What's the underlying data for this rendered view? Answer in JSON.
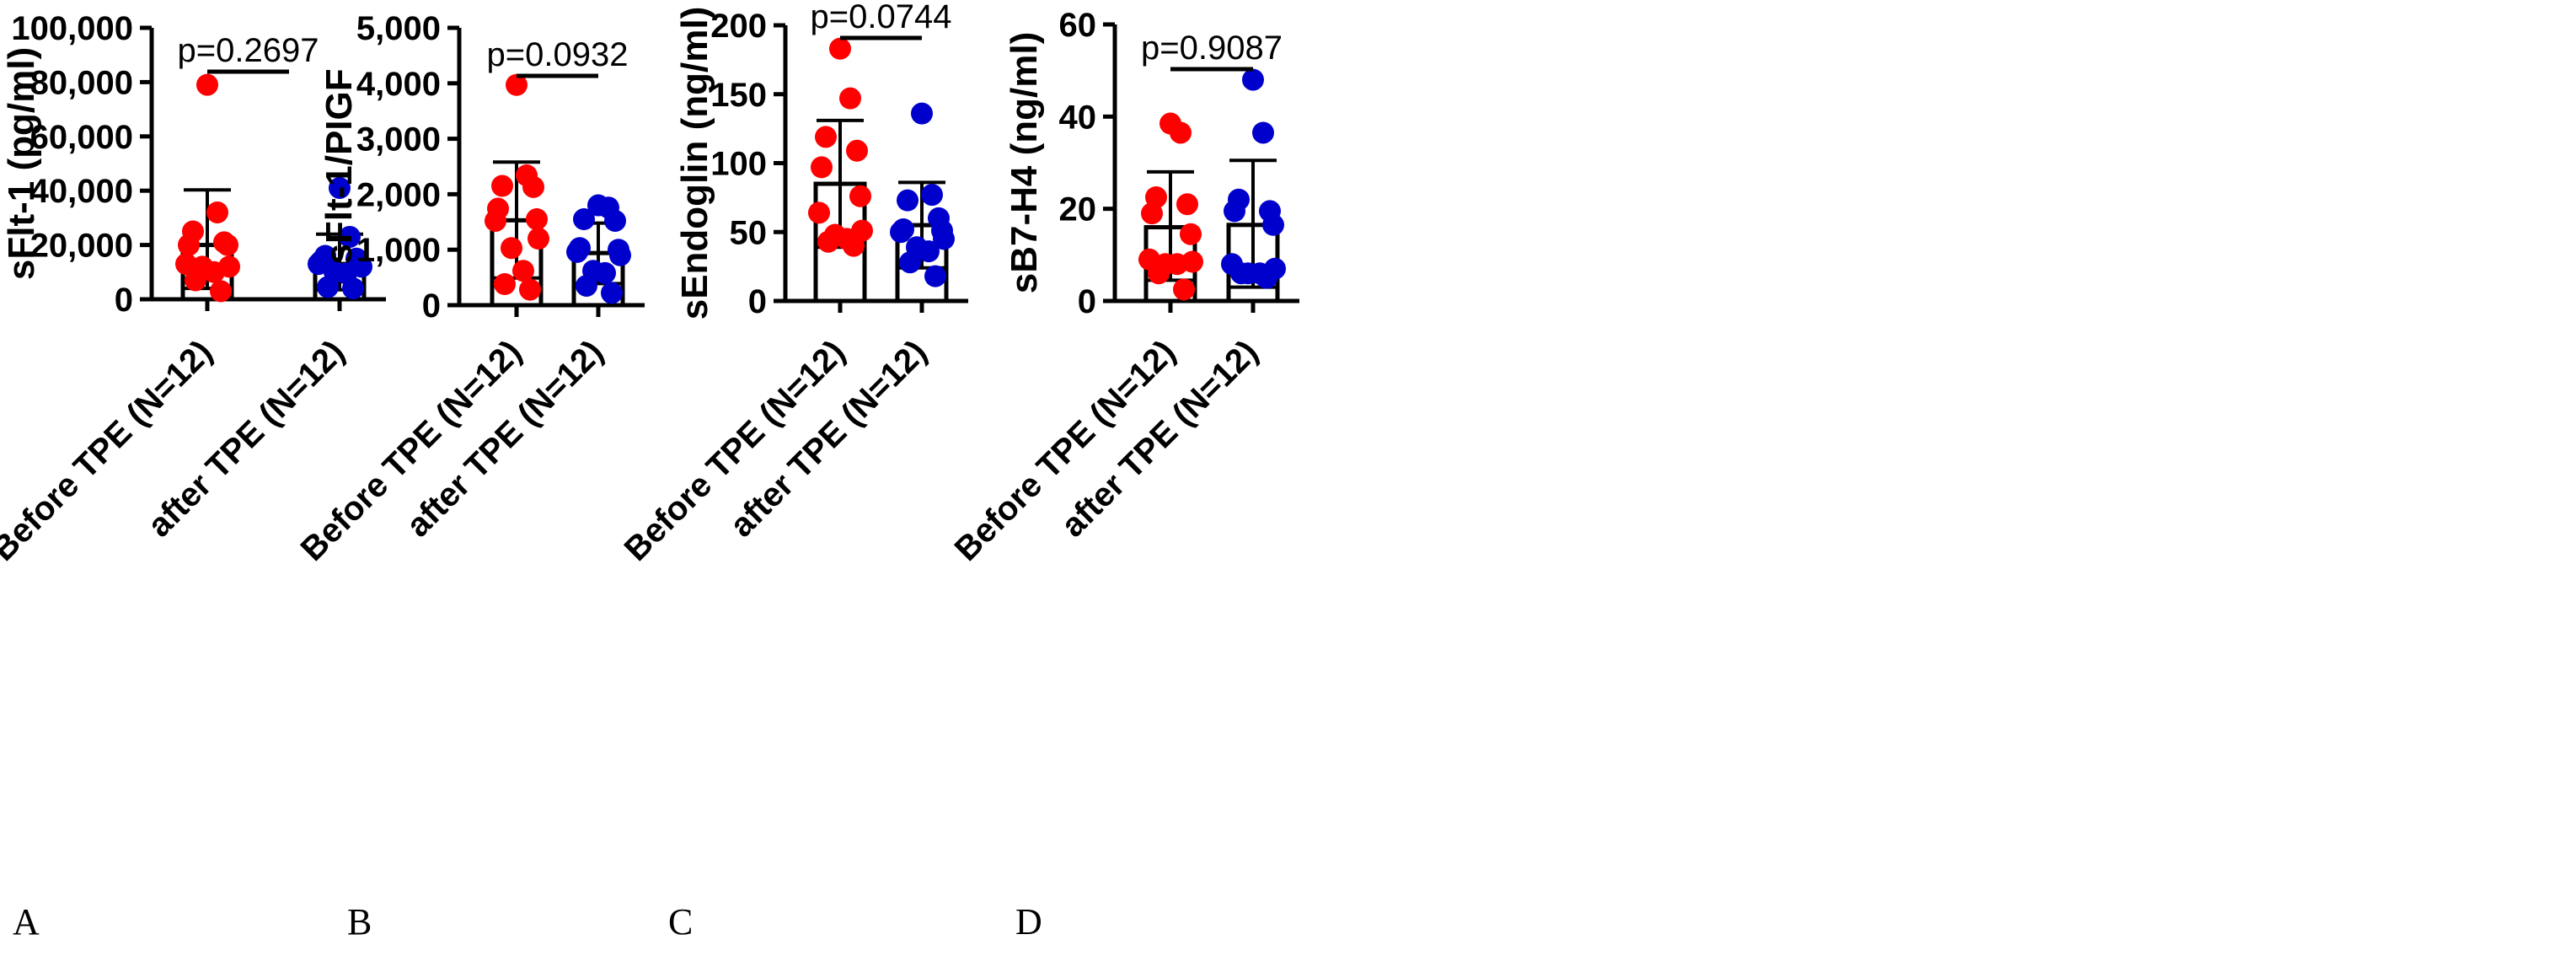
{
  "colors": {
    "before": "#ff0000",
    "after": "#0000cc",
    "bar": "#000000"
  },
  "chart_data": [
    {
      "type": "bar",
      "panel": "A",
      "ylabel": "sFlt-1 (pg/ml)",
      "ylim": [
        0,
        100000
      ],
      "yticks": [
        0,
        20000,
        40000,
        60000,
        80000,
        100000
      ],
      "ytick_labels": [
        "0",
        "20,000",
        "40,000",
        "60,000",
        "80,000",
        "100,000"
      ],
      "categories": [
        "Before TPE (N=12)",
        "after TPE (N=12)"
      ],
      "series": [
        {
          "category": "Before TPE (N=12)",
          "mean": 20000,
          "err_low": 4000,
          "err_high": 40300,
          "points": [
            79000,
            32000,
            25000,
            21000,
            20000,
            20000,
            13000,
            12000,
            12000,
            10000,
            7000,
            3000
          ]
        },
        {
          "category": "after TPE (N=12)",
          "mean": 13000,
          "err_low": 3500,
          "err_high": 24000,
          "points": [
            41000,
            23000,
            16000,
            15000,
            14000,
            13000,
            13000,
            12000,
            10000,
            9500,
            4500,
            4000
          ]
        }
      ],
      "annotation": "p=0.2697"
    },
    {
      "type": "bar",
      "panel": "B",
      "ylabel": "sFlt-1/PIGF",
      "ylim": [
        0,
        5000
      ],
      "yticks": [
        0,
        1000,
        2000,
        3000,
        4000,
        5000
      ],
      "ytick_labels": [
        "0",
        "1,000",
        "2,000",
        "3,000",
        "4,000",
        "5,000"
      ],
      "categories": [
        "Before TPE (N=12)",
        "after TPE (N=12)"
      ],
      "series": [
        {
          "category": "Before TPE (N=12)",
          "mean": 1530,
          "err_low": 490,
          "err_high": 2580,
          "points": [
            3970,
            2340,
            2150,
            2130,
            1740,
            1550,
            1520,
            1200,
            1030,
            620,
            380,
            280
          ]
        },
        {
          "category": "after TPE (N=12)",
          "mean": 940,
          "err_low": 390,
          "err_high": 1480,
          "points": [
            1800,
            1760,
            1550,
            1520,
            1030,
            1000,
            960,
            900,
            620,
            580,
            350,
            220
          ]
        }
      ],
      "annotation": "p=0.0932"
    },
    {
      "type": "bar",
      "panel": "C",
      "ylabel": "sEndoglin (ng/ml)",
      "ylim": [
        0,
        200
      ],
      "yticks": [
        0,
        50,
        100,
        150,
        200
      ],
      "ytick_labels": [
        "0",
        "50",
        "100",
        "150",
        "200"
      ],
      "categories": [
        "Before TPE (N=12)",
        "after TPE (N=12)"
      ],
      "series": [
        {
          "category": "Before TPE (N=12)",
          "mean": 85,
          "err_low": 39,
          "err_high": 131,
          "points": [
            183,
            147,
            119,
            109,
            97,
            76,
            64,
            51,
            48,
            45,
            43,
            40
          ]
        },
        {
          "category": "after TPE (N=12)",
          "mean": 55,
          "err_low": 24,
          "err_high": 86,
          "points": [
            136,
            77,
            73,
            60,
            52,
            51,
            50,
            45,
            39,
            36,
            28,
            18
          ]
        }
      ],
      "annotation": "p=0.0744"
    },
    {
      "type": "bar",
      "panel": "D",
      "ylabel": "sB7-H4 (ng/ml)",
      "ylim": [
        0,
        60
      ],
      "yticks": [
        0,
        20,
        40,
        60
      ],
      "ytick_labels": [
        "0",
        "20",
        "40",
        "60"
      ],
      "categories": [
        "Before TPE (N=12)",
        "after TPE (N=12)"
      ],
      "series": [
        {
          "category": "Before TPE (N=12)",
          "mean": 16,
          "err_low": 4.5,
          "err_high": 28,
          "points": [
            38.5,
            36.5,
            22.5,
            21,
            19,
            14.5,
            9,
            8.5,
            8,
            8,
            6,
            2.5
          ]
        },
        {
          "category": "after TPE (N=12)",
          "mean": 16.5,
          "err_low": 3,
          "err_high": 30.5,
          "points": [
            48,
            36.5,
            22,
            19.5,
            19.5,
            16.5,
            8,
            7,
            6,
            6,
            6,
            5
          ]
        }
      ],
      "annotation": "p=0.9087"
    }
  ]
}
